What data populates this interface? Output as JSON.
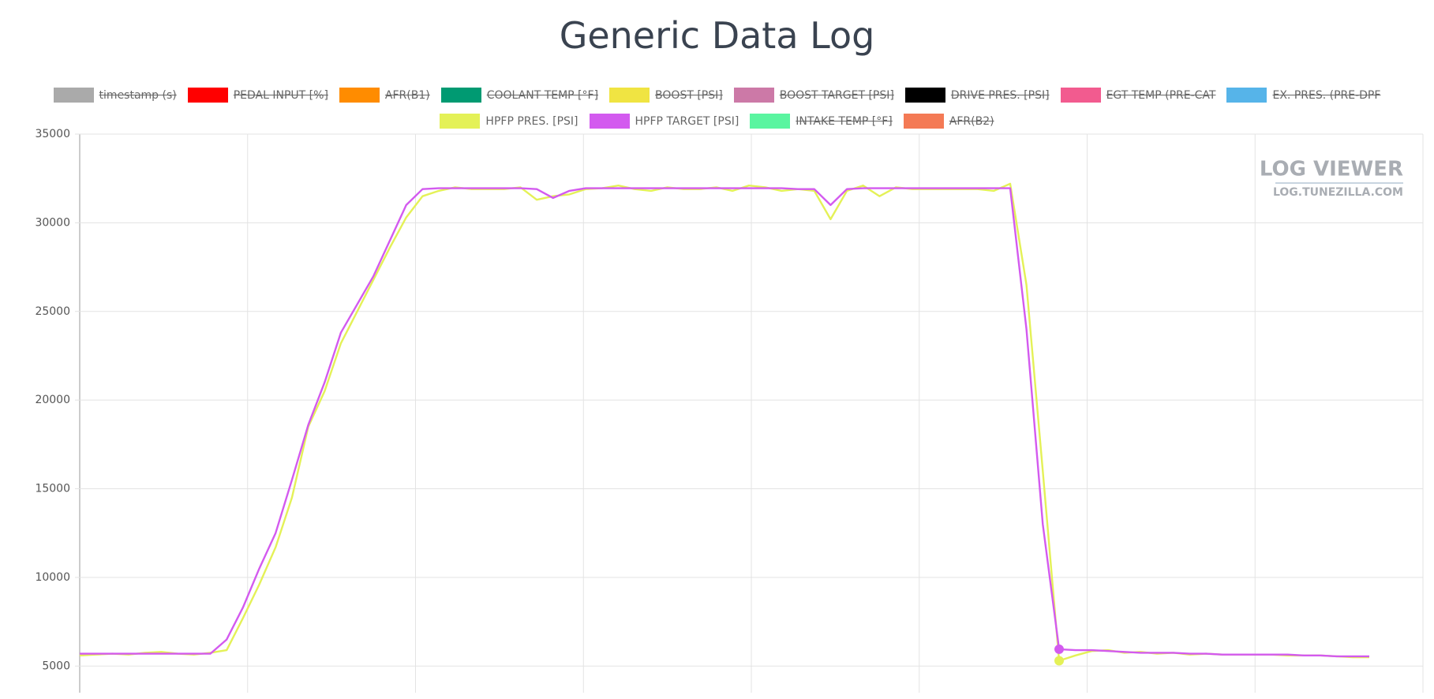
{
  "chart_data": {
    "type": "line",
    "title": "Generic Data Log",
    "watermark": {
      "title": "LOG VIEWER",
      "subtitle": "LOG.TUNEZILLA.COM"
    },
    "categories": [
      null,
      null,
      null,
      null,
      null,
      null,
      null,
      null,
      null,
      null,
      null,
      null,
      null,
      null,
      null,
      null,
      null,
      null,
      null,
      null,
      null,
      null,
      null,
      null,
      null,
      null,
      null,
      null,
      null,
      null,
      null,
      null,
      null,
      null,
      null,
      null,
      null,
      null,
      null,
      null,
      null,
      null,
      null,
      null,
      null,
      null,
      null,
      null,
      null,
      null,
      null,
      null,
      null,
      null,
      null,
      null,
      null,
      null,
      null,
      null,
      null,
      null,
      null,
      null,
      null,
      null,
      null,
      null,
      null,
      null,
      null,
      null,
      null,
      null,
      null,
      null,
      null,
      null,
      null,
      null
    ],
    "ylim": [
      3500,
      35000
    ],
    "yticks": [
      5000,
      10000,
      15000,
      20000,
      25000,
      30000,
      35000
    ],
    "grid": true,
    "hover_index": 60,
    "series": [
      {
        "name": "timestamp (s)",
        "color": "#aaaaaa",
        "hidden": true
      },
      {
        "name": "PEDAL INPUT [%]",
        "color": "#ff0000",
        "hidden": true
      },
      {
        "name": "AFR(B1)",
        "color": "#ff8c00",
        "hidden": true
      },
      {
        "name": "COOLANT TEMP [°F]",
        "color": "#009a72",
        "hidden": true
      },
      {
        "name": "BOOST [PSI]",
        "color": "#f0e442",
        "hidden": true
      },
      {
        "name": "BOOST TARGET [PSI]",
        "color": "#cc79a7",
        "hidden": true
      },
      {
        "name": "DRIVE PRES. [PSI]",
        "color": "#000000",
        "hidden": true
      },
      {
        "name": "EGT TEMP (PRE-CAT",
        "color": "#f25b8f",
        "hidden": true
      },
      {
        "name": "EX. PRES. (PRE-DPF",
        "color": "#56b4e9",
        "hidden": true
      },
      {
        "name": "HPFP PRES. [PSI]",
        "color": "#e4f157",
        "hidden": false,
        "values": [
          5600,
          5650,
          5700,
          5650,
          5750,
          5800,
          5700,
          5650,
          5750,
          5900,
          7700,
          9600,
          11700,
          14500,
          18500,
          20500,
          23200,
          25000,
          26800,
          28600,
          30300,
          31500,
          31800,
          32000,
          31900,
          31900,
          31900,
          32000,
          31300,
          31500,
          31600,
          31900,
          31950,
          32100,
          31900,
          31800,
          32000,
          31900,
          31900,
          32000,
          31800,
          32100,
          32000,
          31800,
          31900,
          31800,
          30200,
          31800,
          32100,
          31500,
          32000,
          31900,
          31900,
          31900,
          31900,
          31900,
          31800,
          32200,
          26500,
          16000,
          5300,
          5600,
          5850,
          5900,
          5750,
          5800,
          5700,
          5750,
          5650,
          5700,
          5650,
          5650,
          5650,
          5650,
          5600,
          5600,
          5600,
          5550,
          5500,
          5500
        ]
      },
      {
        "name": "HPFP TARGET [PSI]",
        "color": "#d35aef",
        "hidden": false,
        "values": [
          5700,
          5700,
          5700,
          5700,
          5700,
          5700,
          5700,
          5700,
          5700,
          6500,
          8300,
          10500,
          12500,
          15500,
          18600,
          21000,
          23800,
          25400,
          27000,
          29000,
          31000,
          31900,
          31950,
          31950,
          31950,
          31950,
          31950,
          31950,
          31900,
          31400,
          31800,
          31950,
          31950,
          31950,
          31950,
          31950,
          31950,
          31950,
          31950,
          31950,
          31950,
          31950,
          31950,
          31950,
          31900,
          31900,
          31000,
          31900,
          31950,
          31950,
          31950,
          31950,
          31950,
          31950,
          31950,
          31950,
          31950,
          31950,
          24000,
          13000,
          5950,
          5900,
          5900,
          5850,
          5800,
          5750,
          5750,
          5750,
          5700,
          5700,
          5650,
          5650,
          5650,
          5650,
          5650,
          5600,
          5600,
          5550,
          5550,
          5550
        ]
      },
      {
        "name": "INTAKE TEMP [°F]",
        "color": "#5af5a0",
        "hidden": true
      },
      {
        "name": "AFR(B2)",
        "color": "#f47a55",
        "hidden": true
      }
    ]
  }
}
